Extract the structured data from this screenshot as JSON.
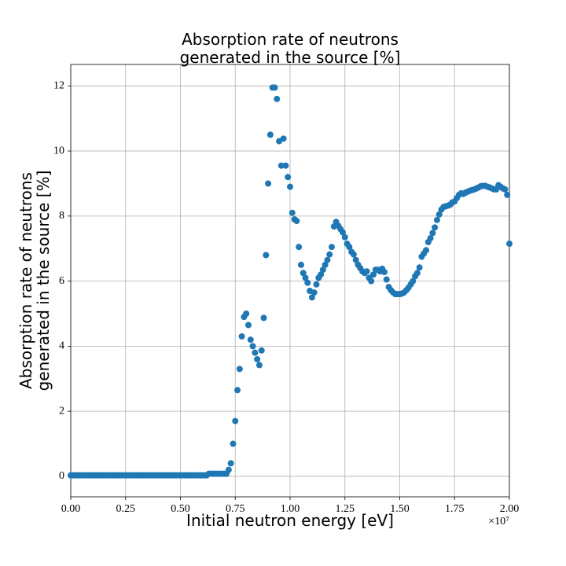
{
  "chart_data": {
    "type": "scatter",
    "title": [
      "Absorption rate of neutrons",
      "generated in the source [%]"
    ],
    "xlabel": "Initial neutron energy [eV]",
    "ylabel": [
      "Absorption rate of neutrons",
      "generated in the source [%]"
    ],
    "x_offset_label": "×10⁷",
    "color": "#1f77b4",
    "grid": true,
    "xlim": [
      0,
      20000000
    ],
    "ylim": [
      -0.63,
      12.66
    ],
    "xticks": [
      {
        "value": 0,
        "label": "0.00"
      },
      {
        "value": 2500000,
        "label": "0.25"
      },
      {
        "value": 5000000,
        "label": "0.50"
      },
      {
        "value": 7500000,
        "label": "0.75"
      },
      {
        "value": 10000000,
        "label": "1.00"
      },
      {
        "value": 12500000,
        "label": "1.25"
      },
      {
        "value": 15000000,
        "label": "1.50"
      },
      {
        "value": 17500000,
        "label": "1.75"
      },
      {
        "value": 20000000,
        "label": "2.00"
      }
    ],
    "yticks": [
      0,
      2,
      4,
      6,
      8,
      10,
      12
    ],
    "x": [
      0,
      100000,
      200000,
      300000,
      400000,
      500000,
      600000,
      700000,
      800000,
      900000,
      1000000,
      1100000,
      1200000,
      1300000,
      1400000,
      1500000,
      1600000,
      1700000,
      1800000,
      1900000,
      2000000,
      2100000,
      2200000,
      2300000,
      2400000,
      2500000,
      2600000,
      2700000,
      2800000,
      2900000,
      3000000,
      3100000,
      3200000,
      3300000,
      3400000,
      3500000,
      3600000,
      3700000,
      3800000,
      3900000,
      4000000,
      4100000,
      4200000,
      4300000,
      4400000,
      4500000,
      4600000,
      4700000,
      4800000,
      4900000,
      5000000,
      5100000,
      5200000,
      5300000,
      5400000,
      5500000,
      5600000,
      5700000,
      5800000,
      5900000,
      6000000,
      6100000,
      6200000,
      6300000,
      6400000,
      6500000,
      6600000,
      6700000,
      6800000,
      6900000,
      7000000,
      7100000,
      7200000,
      7300000,
      7400000,
      7500000,
      7600000,
      7700000,
      7800000,
      7900000,
      8000000,
      8100000,
      8200000,
      8300000,
      8400000,
      8500000,
      8600000,
      8700000,
      8800000,
      8900000,
      9000000,
      9100000,
      9200000,
      9300000,
      9400000,
      9500000,
      9600000,
      9700000,
      9800000,
      9900000,
      10000000,
      10100000,
      10200000,
      10300000,
      10400000,
      10500000,
      10600000,
      10700000,
      10800000,
      10900000,
      11000000,
      11100000,
      11200000,
      11300000,
      11400000,
      11500000,
      11600000,
      11700000,
      11800000,
      11900000,
      12000000,
      12100000,
      12200000,
      12300000,
      12400000,
      12500000,
      12600000,
      12700000,
      12800000,
      12900000,
      13000000,
      13100000,
      13200000,
      13300000,
      13400000,
      13500000,
      13600000,
      13700000,
      13800000,
      13900000,
      14000000,
      14100000,
      14200000,
      14300000,
      14400000,
      14500000,
      14600000,
      14700000,
      14800000,
      14900000,
      15000000,
      15100000,
      15200000,
      15300000,
      15400000,
      15500000,
      15600000,
      15700000,
      15800000,
      15900000,
      16000000,
      16100000,
      16200000,
      16300000,
      16400000,
      16500000,
      16600000,
      16700000,
      16800000,
      16900000,
      17000000,
      17100000,
      17200000,
      17300000,
      17400000,
      17500000,
      17600000,
      17700000,
      17800000,
      17900000,
      18000000,
      18100000,
      18200000,
      18300000,
      18400000,
      18500000,
      18600000,
      18700000,
      18800000,
      18900000,
      19000000,
      19100000,
      19200000,
      19300000,
      19400000,
      19500000,
      19600000,
      19700000,
      19800000,
      19900000,
      20000000
    ],
    "values": [
      0.03,
      0.03,
      0.03,
      0.03,
      0.03,
      0.03,
      0.03,
      0.03,
      0.03,
      0.03,
      0.03,
      0.03,
      0.03,
      0.03,
      0.03,
      0.03,
      0.03,
      0.03,
      0.03,
      0.03,
      0.03,
      0.03,
      0.03,
      0.03,
      0.03,
      0.03,
      0.03,
      0.03,
      0.03,
      0.03,
      0.03,
      0.03,
      0.03,
      0.03,
      0.03,
      0.03,
      0.03,
      0.03,
      0.03,
      0.03,
      0.03,
      0.03,
      0.03,
      0.03,
      0.03,
      0.03,
      0.03,
      0.03,
      0.03,
      0.03,
      0.03,
      0.03,
      0.03,
      0.03,
      0.03,
      0.03,
      0.03,
      0.03,
      0.03,
      0.03,
      0.03,
      0.03,
      0.03,
      0.08,
      0.08,
      0.08,
      0.08,
      0.08,
      0.08,
      0.08,
      0.08,
      0.08,
      0.2,
      0.4,
      1.0,
      1.7,
      2.65,
      3.3,
      4.3,
      4.9,
      5.0,
      4.65,
      4.2,
      4.0,
      3.8,
      3.6,
      3.42,
      3.87,
      4.87,
      6.8,
      9.0,
      10.5,
      11.95,
      11.95,
      11.6,
      10.3,
      9.55,
      10.38,
      9.55,
      9.2,
      8.9,
      8.1,
      7.9,
      7.85,
      7.05,
      6.5,
      6.25,
      6.1,
      5.95,
      5.7,
      5.5,
      5.65,
      5.9,
      6.1,
      6.2,
      6.35,
      6.5,
      6.65,
      6.82,
      7.05,
      7.68,
      7.82,
      7.7,
      7.6,
      7.5,
      7.35,
      7.15,
      7.05,
      6.9,
      6.82,
      6.65,
      6.5,
      6.4,
      6.3,
      6.25,
      6.3,
      6.1,
      6.0,
      6.2,
      6.35,
      6.35,
      6.3,
      6.38,
      6.28,
      6.05,
      5.82,
      5.72,
      5.65,
      5.6,
      5.6,
      5.6,
      5.62,
      5.65,
      5.72,
      5.8,
      5.9,
      6.0,
      6.15,
      6.25,
      6.42,
      6.75,
      6.85,
      6.95,
      7.2,
      7.32,
      7.48,
      7.65,
      7.88,
      8.05,
      8.2,
      8.28,
      8.3,
      8.32,
      8.35,
      8.42,
      8.45,
      8.55,
      8.65,
      8.7,
      8.68,
      8.72,
      8.75,
      8.78,
      8.8,
      8.82,
      8.85,
      8.88,
      8.92,
      8.93,
      8.93,
      8.9,
      8.88,
      8.85,
      8.82,
      8.82,
      8.95,
      8.9,
      8.85,
      8.82,
      8.65,
      7.15
    ]
  }
}
